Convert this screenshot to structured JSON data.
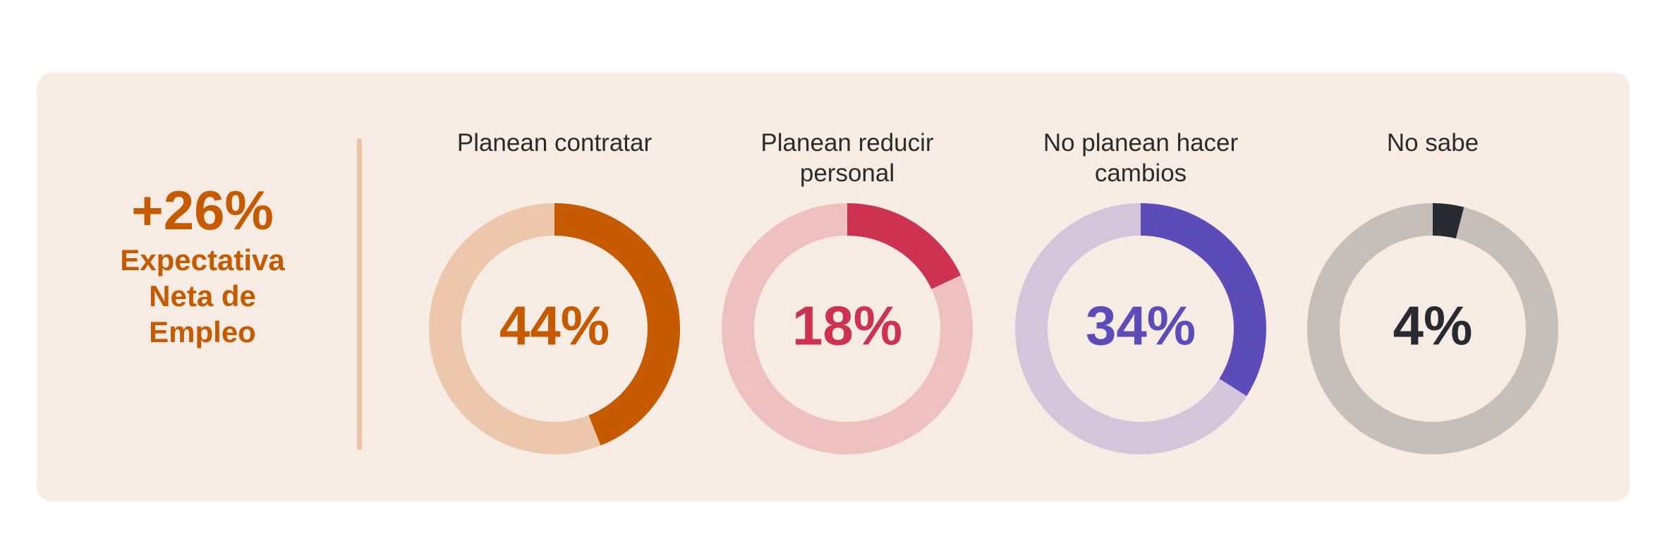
{
  "net_employment": {
    "value": "+26%",
    "label": "Expectativa Neta de Empleo",
    "color": "#c55a00"
  },
  "chart_data": {
    "type": "pie",
    "variant": "donut",
    "donuts": [
      {
        "category": "Planean contratar",
        "value": 44,
        "label": "44%",
        "color": "#c55a00",
        "track_color": "#ecc7ab"
      },
      {
        "category": "Planean reducir personal",
        "value": 18,
        "label": "18%",
        "color": "#cd3350",
        "track_color": "#efc0c2"
      },
      {
        "category": "No planean hacer cambios",
        "value": 34,
        "label": "34%",
        "color": "#5b4cb8",
        "track_color": "#d4c5da"
      },
      {
        "category": "No sabe",
        "value": 4,
        "label": "4%",
        "color": "#272a31",
        "track_color": "#c6beb9"
      }
    ]
  }
}
